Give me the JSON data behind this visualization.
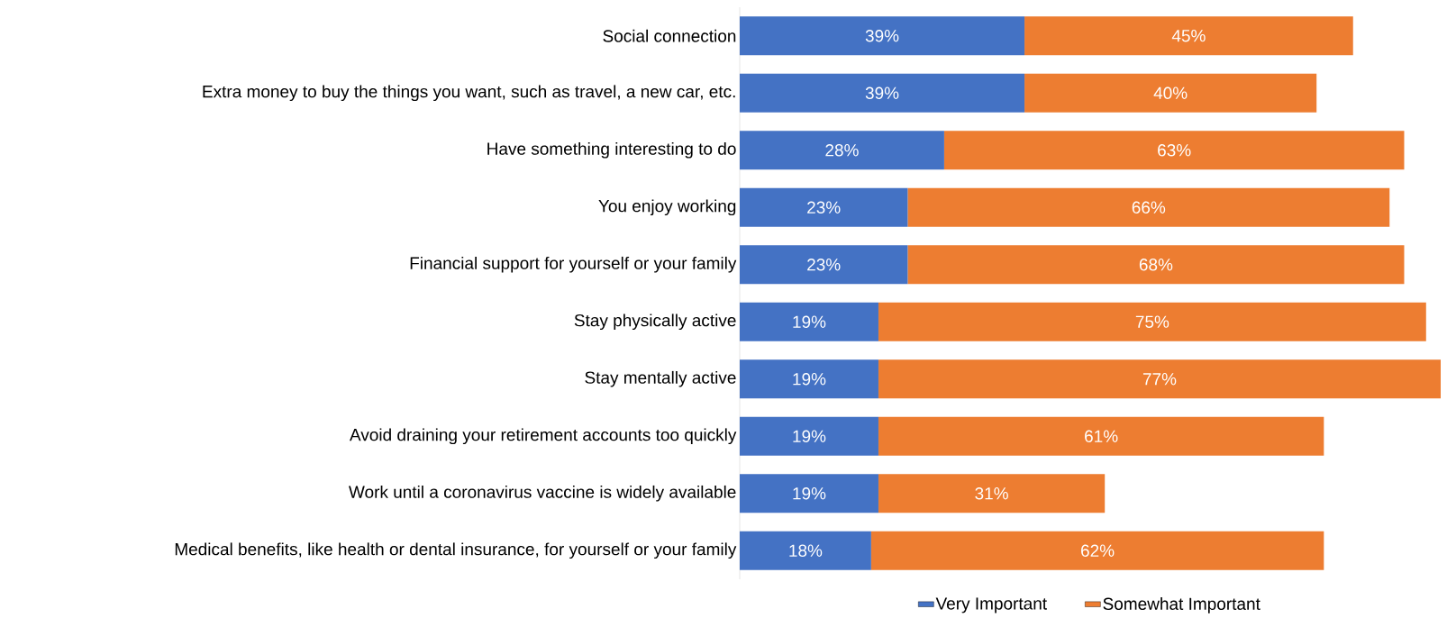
{
  "chart_data": {
    "type": "bar",
    "orientation": "horizontal",
    "stacked": true,
    "legend": "bottom",
    "categories": [
      "Social connection",
      "Extra money to buy the things you want, such as travel, a new car, etc.",
      "Have something interesting to do",
      "You enjoy working",
      "Financial support for yourself or your family",
      "Stay physically active",
      "Stay mentally active",
      "Avoid draining your retirement accounts too quickly",
      "Work until a coronavirus vaccine is widely available",
      "Medical benefits, like health or dental insurance, for yourself or your family"
    ],
    "series": [
      {
        "name": "Very Important",
        "color": "#4472c4",
        "values": [
          39,
          39,
          28,
          23,
          23,
          19,
          19,
          19,
          19,
          18
        ],
        "value_labels": [
          "39%",
          "39%",
          "28%",
          "23%",
          "23%",
          "19%",
          "19%",
          "19%",
          "19%",
          "18%"
        ]
      },
      {
        "name": "Somewhat Important",
        "color": "#ed7d31",
        "values": [
          45,
          40,
          63,
          66,
          68,
          75,
          77,
          61,
          31,
          62
        ],
        "value_labels": [
          "45%",
          "40%",
          "63%",
          "66%",
          "68%",
          "75%",
          "77%",
          "61%",
          "31%",
          "62%"
        ]
      }
    ]
  }
}
